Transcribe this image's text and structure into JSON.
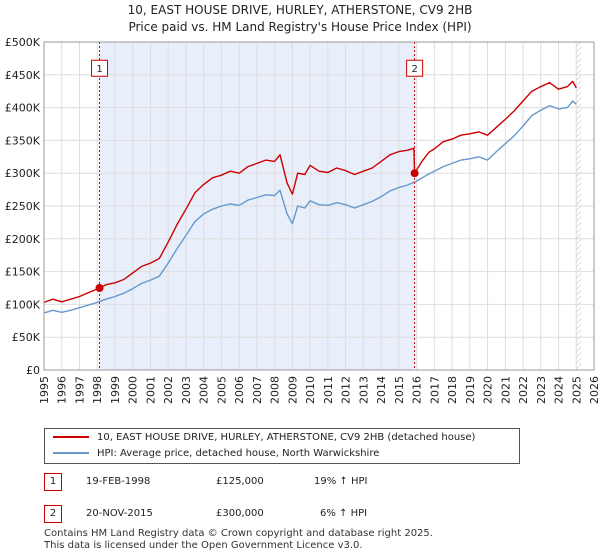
{
  "chart_data": {
    "type": "line",
    "title": "10, EAST HOUSE DRIVE, HURLEY, ATHERSTONE, CV9 2HB",
    "subtitle": "Price paid vs. HM Land Registry's House Price Index (HPI)",
    "xlim": [
      1995,
      2026
    ],
    "ylim": [
      0,
      500000
    ],
    "y_ticks": [
      0,
      50000,
      100000,
      150000,
      200000,
      250000,
      300000,
      350000,
      400000,
      450000,
      500000
    ],
    "y_tick_labels": [
      "£0",
      "£50K",
      "£100K",
      "£150K",
      "£200K",
      "£250K",
      "£300K",
      "£350K",
      "£400K",
      "£450K",
      "£500K"
    ],
    "x_ticks": [
      1995,
      1996,
      1997,
      1998,
      1999,
      2000,
      2001,
      2002,
      2003,
      2004,
      2005,
      2006,
      2007,
      2008,
      2009,
      2010,
      2011,
      2012,
      2013,
      2014,
      2015,
      2016,
      2017,
      2018,
      2019,
      2020,
      2021,
      2022,
      2023,
      2024,
      2025,
      2026
    ],
    "shaded_period": [
      1998.13,
      2015.89
    ],
    "series": [
      {
        "name": "10, EAST HOUSE DRIVE, HURLEY, ATHERSTONE, CV9 2HB (detached house)",
        "color": "#cc0000",
        "x": [
          1995.0,
          1995.5,
          1996.0,
          1996.5,
          1997.0,
          1997.5,
          1998.13,
          1998.5,
          1999.0,
          1999.5,
          2000.0,
          2000.5,
          2001.0,
          2001.5,
          2002.0,
          2002.5,
          2003.0,
          2003.5,
          2004.0,
          2004.5,
          2005.0,
          2005.5,
          2006.0,
          2006.5,
          2007.0,
          2007.5,
          2008.0,
          2008.3,
          2008.7,
          2009.0,
          2009.3,
          2009.7,
          2010.0,
          2010.5,
          2011.0,
          2011.5,
          2012.0,
          2012.5,
          2013.0,
          2013.5,
          2014.0,
          2014.5,
          2015.0,
          2015.5,
          2015.85,
          2015.89,
          2016.3,
          2016.7,
          2017.0,
          2017.5,
          2018.0,
          2018.5,
          2019.0,
          2019.5,
          2020.0,
          2020.5,
          2021.0,
          2021.5,
          2022.0,
          2022.5,
          2023.0,
          2023.5,
          2024.0,
          2024.5,
          2024.8,
          2025.0
        ],
        "values": [
          103000,
          108000,
          104000,
          108000,
          112000,
          118000,
          125000,
          130000,
          133000,
          138000,
          148000,
          158000,
          163000,
          170000,
          195000,
          222000,
          245000,
          270000,
          283000,
          293000,
          297000,
          303000,
          300000,
          310000,
          315000,
          320000,
          318000,
          328000,
          285000,
          268000,
          300000,
          298000,
          312000,
          303000,
          301000,
          308000,
          304000,
          298000,
          303000,
          308000,
          318000,
          328000,
          333000,
          335000,
          338000,
          300000,
          318000,
          332000,
          337000,
          348000,
          352000,
          358000,
          360000,
          363000,
          358000,
          370000,
          382000,
          395000,
          410000,
          425000,
          432000,
          438000,
          428000,
          432000,
          440000,
          430000
        ]
      },
      {
        "name": "HPI: Average price, detached house, North Warwickshire",
        "color": "#6699cc",
        "x": [
          1995.0,
          1995.5,
          1996.0,
          1996.5,
          1997.0,
          1997.5,
          1998.0,
          1998.5,
          1999.0,
          1999.5,
          2000.0,
          2000.5,
          2001.0,
          2001.5,
          2002.0,
          2002.5,
          2003.0,
          2003.5,
          2004.0,
          2004.5,
          2005.0,
          2005.5,
          2006.0,
          2006.5,
          2007.0,
          2007.5,
          2008.0,
          2008.3,
          2008.7,
          2009.0,
          2009.3,
          2009.7,
          2010.0,
          2010.5,
          2011.0,
          2011.5,
          2012.0,
          2012.5,
          2013.0,
          2013.5,
          2014.0,
          2014.5,
          2015.0,
          2015.5,
          2016.0,
          2016.5,
          2017.0,
          2017.5,
          2018.0,
          2018.5,
          2019.0,
          2019.5,
          2020.0,
          2020.5,
          2021.0,
          2021.5,
          2022.0,
          2022.5,
          2023.0,
          2023.5,
          2024.0,
          2024.5,
          2024.8,
          2025.0
        ],
        "values": [
          87000,
          91000,
          88000,
          91000,
          95000,
          99000,
          103000,
          108000,
          112000,
          117000,
          124000,
          132000,
          137000,
          143000,
          163000,
          185000,
          205000,
          226000,
          238000,
          245000,
          250000,
          253000,
          251000,
          259000,
          263000,
          267000,
          266000,
          274000,
          238000,
          223000,
          250000,
          247000,
          258000,
          252000,
          251000,
          255000,
          252000,
          247000,
          252000,
          257000,
          264000,
          273000,
          278000,
          282000,
          288000,
          296000,
          303000,
          310000,
          315000,
          320000,
          322000,
          325000,
          320000,
          333000,
          345000,
          357000,
          372000,
          388000,
          396000,
          403000,
          398000,
          400000,
          410000,
          405000
        ]
      }
    ],
    "annotations": [
      {
        "label": "1",
        "x": 1998.13,
        "value": 125000,
        "box_value": 460000
      },
      {
        "label": "2",
        "x": 2015.89,
        "value": 300000,
        "box_value": 460000
      }
    ]
  },
  "legend": {
    "item1": "10, EAST HOUSE DRIVE, HURLEY, ATHERSTONE, CV9 2HB (detached house)",
    "item2": "HPI: Average price, detached house, North Warwickshire"
  },
  "transactions": [
    {
      "num": "1",
      "date": "19-FEB-1998",
      "price": "£125,000",
      "hpi": "19% ↑ HPI"
    },
    {
      "num": "2",
      "date": "20-NOV-2015",
      "price": "£300,000",
      "hpi": "6% ↑ HPI"
    }
  ],
  "footer": {
    "line1": "Contains HM Land Registry data © Crown copyright and database right 2025.",
    "line2": "This data is licensed under the Open Government Licence v3.0."
  }
}
